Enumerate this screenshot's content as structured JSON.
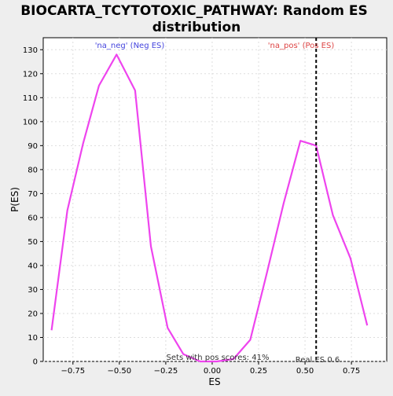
{
  "chart_data": {
    "type": "line",
    "title_line1": "BIOCARTA_TCYTOTOXIC_PATHWAY: Random ES",
    "title_line2": "distribution",
    "xlabel": "ES",
    "ylabel": "P(ES)",
    "xlim": [
      -0.91,
      0.94
    ],
    "ylim": [
      0,
      135
    ],
    "xticks": [
      -0.75,
      -0.5,
      -0.25,
      0.0,
      0.25,
      0.5,
      0.75
    ],
    "xtick_labels": [
      "−0.75",
      "−0.50",
      "−0.25",
      "0.00",
      "0.25",
      "0.50",
      "0.75"
    ],
    "yticks": [
      0,
      10,
      20,
      30,
      40,
      50,
      60,
      70,
      80,
      90,
      100,
      110,
      120,
      130
    ],
    "ytick_labels": [
      "0",
      "10",
      "20",
      "30",
      "40",
      "50",
      "60",
      "70",
      "80",
      "90",
      "100",
      "110",
      "120",
      "130"
    ],
    "grid": true,
    "series": [
      {
        "color": "#ee44ee",
        "x": [
          -0.865,
          -0.78,
          -0.695,
          -0.61,
          -0.515,
          -0.415,
          -0.33,
          -0.24,
          -0.155,
          -0.065,
          0.025,
          0.115,
          0.205,
          0.295,
          0.385,
          0.475,
          0.56,
          0.65,
          0.745,
          0.835
        ],
        "y": [
          13,
          63,
          91,
          115,
          128,
          113,
          48,
          14,
          3,
          0,
          0,
          1,
          9,
          37,
          66,
          92,
          90,
          61,
          43,
          15
        ]
      }
    ],
    "real_es": 0.56,
    "annotations": {
      "neg_label": "'na_neg' (Neg ES)",
      "neg_color": "#4444dd",
      "pos_label": "'na_pos' (Pos ES)",
      "pos_color": "#dd4444",
      "sets_label": "Sets with pos scores: 41%",
      "real_label": "Real ES 0.6"
    }
  }
}
